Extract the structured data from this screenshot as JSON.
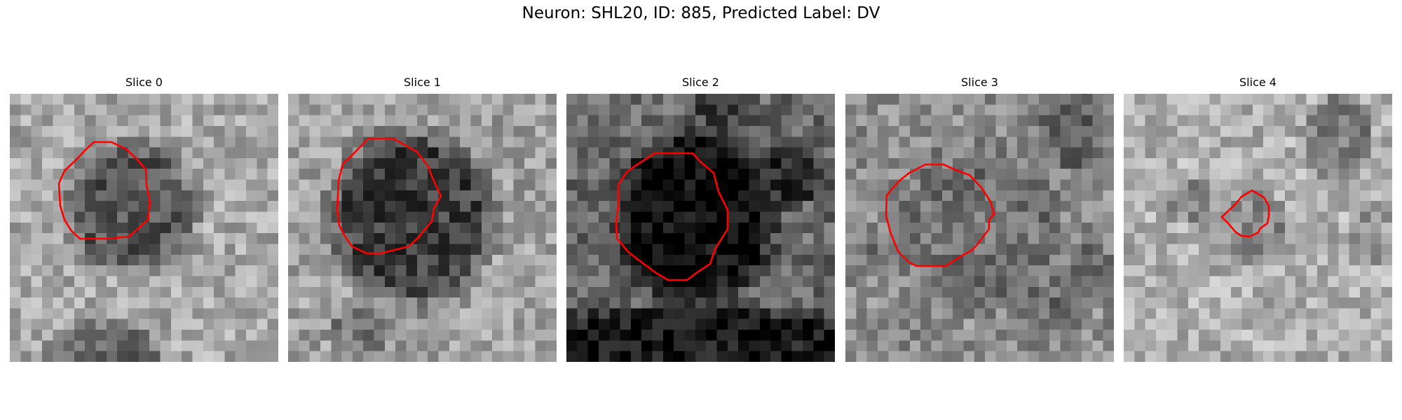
{
  "figure": {
    "title": "Neuron: SHL20, ID: 885, Predicted Label: DV"
  },
  "panels": [
    {
      "label": "Slice 0",
      "background_shade": "#a8a8a8",
      "cell_shade": "#555555",
      "contour_color": "#ff0000"
    },
    {
      "label": "Slice 1",
      "background_shade": "#a0a0a0",
      "cell_shade": "#3e3e3e",
      "contour_color": "#ff0000"
    },
    {
      "label": "Slice 2",
      "background_shade": "#6a6a6a",
      "cell_shade": "#080808",
      "contour_color": "#ff0000"
    },
    {
      "label": "Slice 3",
      "background_shade": "#8e8e8e",
      "cell_shade": "#5c5c5c",
      "contour_color": "#ff0000"
    },
    {
      "label": "Slice 4",
      "background_shade": "#b0b0b0",
      "cell_shade": "#6e6e6e",
      "contour_color": "#ff0000"
    }
  ]
}
